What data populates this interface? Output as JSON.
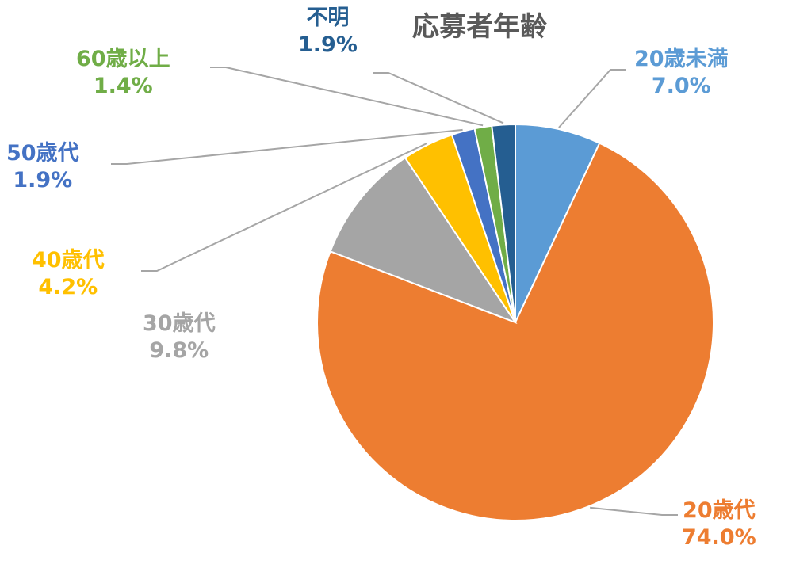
{
  "chart_data": {
    "type": "pie",
    "title": "応募者年齢",
    "start_angle_deg": 0,
    "direction": "clockwise",
    "slices": [
      {
        "label": "20歳未満",
        "value_label": "7.0%",
        "value": 7.0,
        "color": "#5B9BD5"
      },
      {
        "label": "20歳代",
        "value_label": "74.0%",
        "value": 74.0,
        "color": "#ED7D31"
      },
      {
        "label": "30歳代",
        "value_label": "9.8%",
        "value": 9.8,
        "color": "#A5A5A5"
      },
      {
        "label": "40歳代",
        "value_label": "4.2%",
        "value": 4.2,
        "color": "#FFC000"
      },
      {
        "label": "50歳代",
        "value_label": "1.9%",
        "value": 1.9,
        "color": "#4472C4"
      },
      {
        "label": "60歳以上",
        "value_label": "1.4%",
        "value": 1.4,
        "color": "#70AD47"
      },
      {
        "label": "不明",
        "value_label": "1.9%",
        "value": 1.9,
        "color": "#255E91"
      }
    ]
  }
}
